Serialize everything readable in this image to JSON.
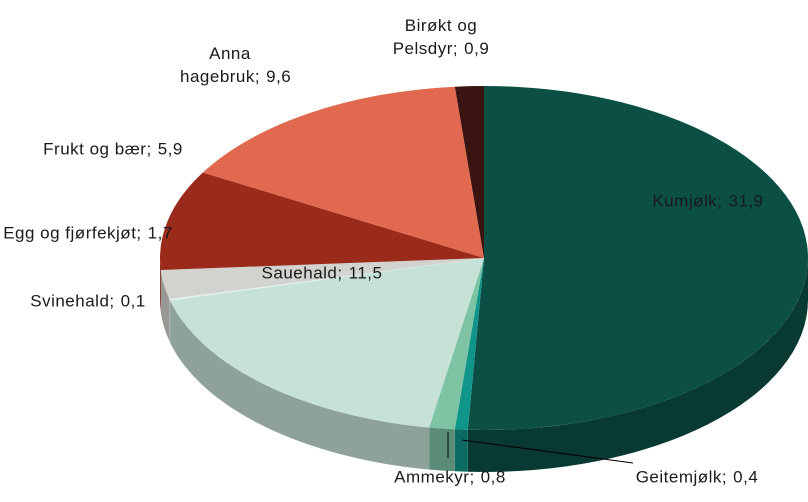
{
  "chart_data": {
    "type": "pie",
    "categories": [
      "Kumjølk;",
      "Geitemjølk;",
      "Ammekyr;",
      "Sauehald;",
      "Svinehald;",
      "Egg og fjørfekjøt;",
      "Frukt og bær;",
      "Anna hagebruk;",
      "Birøkt og Pelsdyr;"
    ],
    "values": [
      31.9,
      0.4,
      0.8,
      11.5,
      0.1,
      1.7,
      5.9,
      9.6,
      0.9
    ],
    "value_labels": [
      "31,9",
      "0,4",
      "0,8",
      "11,5",
      "0,1",
      "1,7",
      "5,9",
      "9,6",
      "0,9"
    ],
    "colors": [
      "#0b4f45",
      "#10958a",
      "#7fc3a5",
      "#c6e1d6",
      "#e3efea",
      "#d2d2ce",
      "#9a2b1b",
      "#e0694f",
      "#3a1410"
    ]
  }
}
